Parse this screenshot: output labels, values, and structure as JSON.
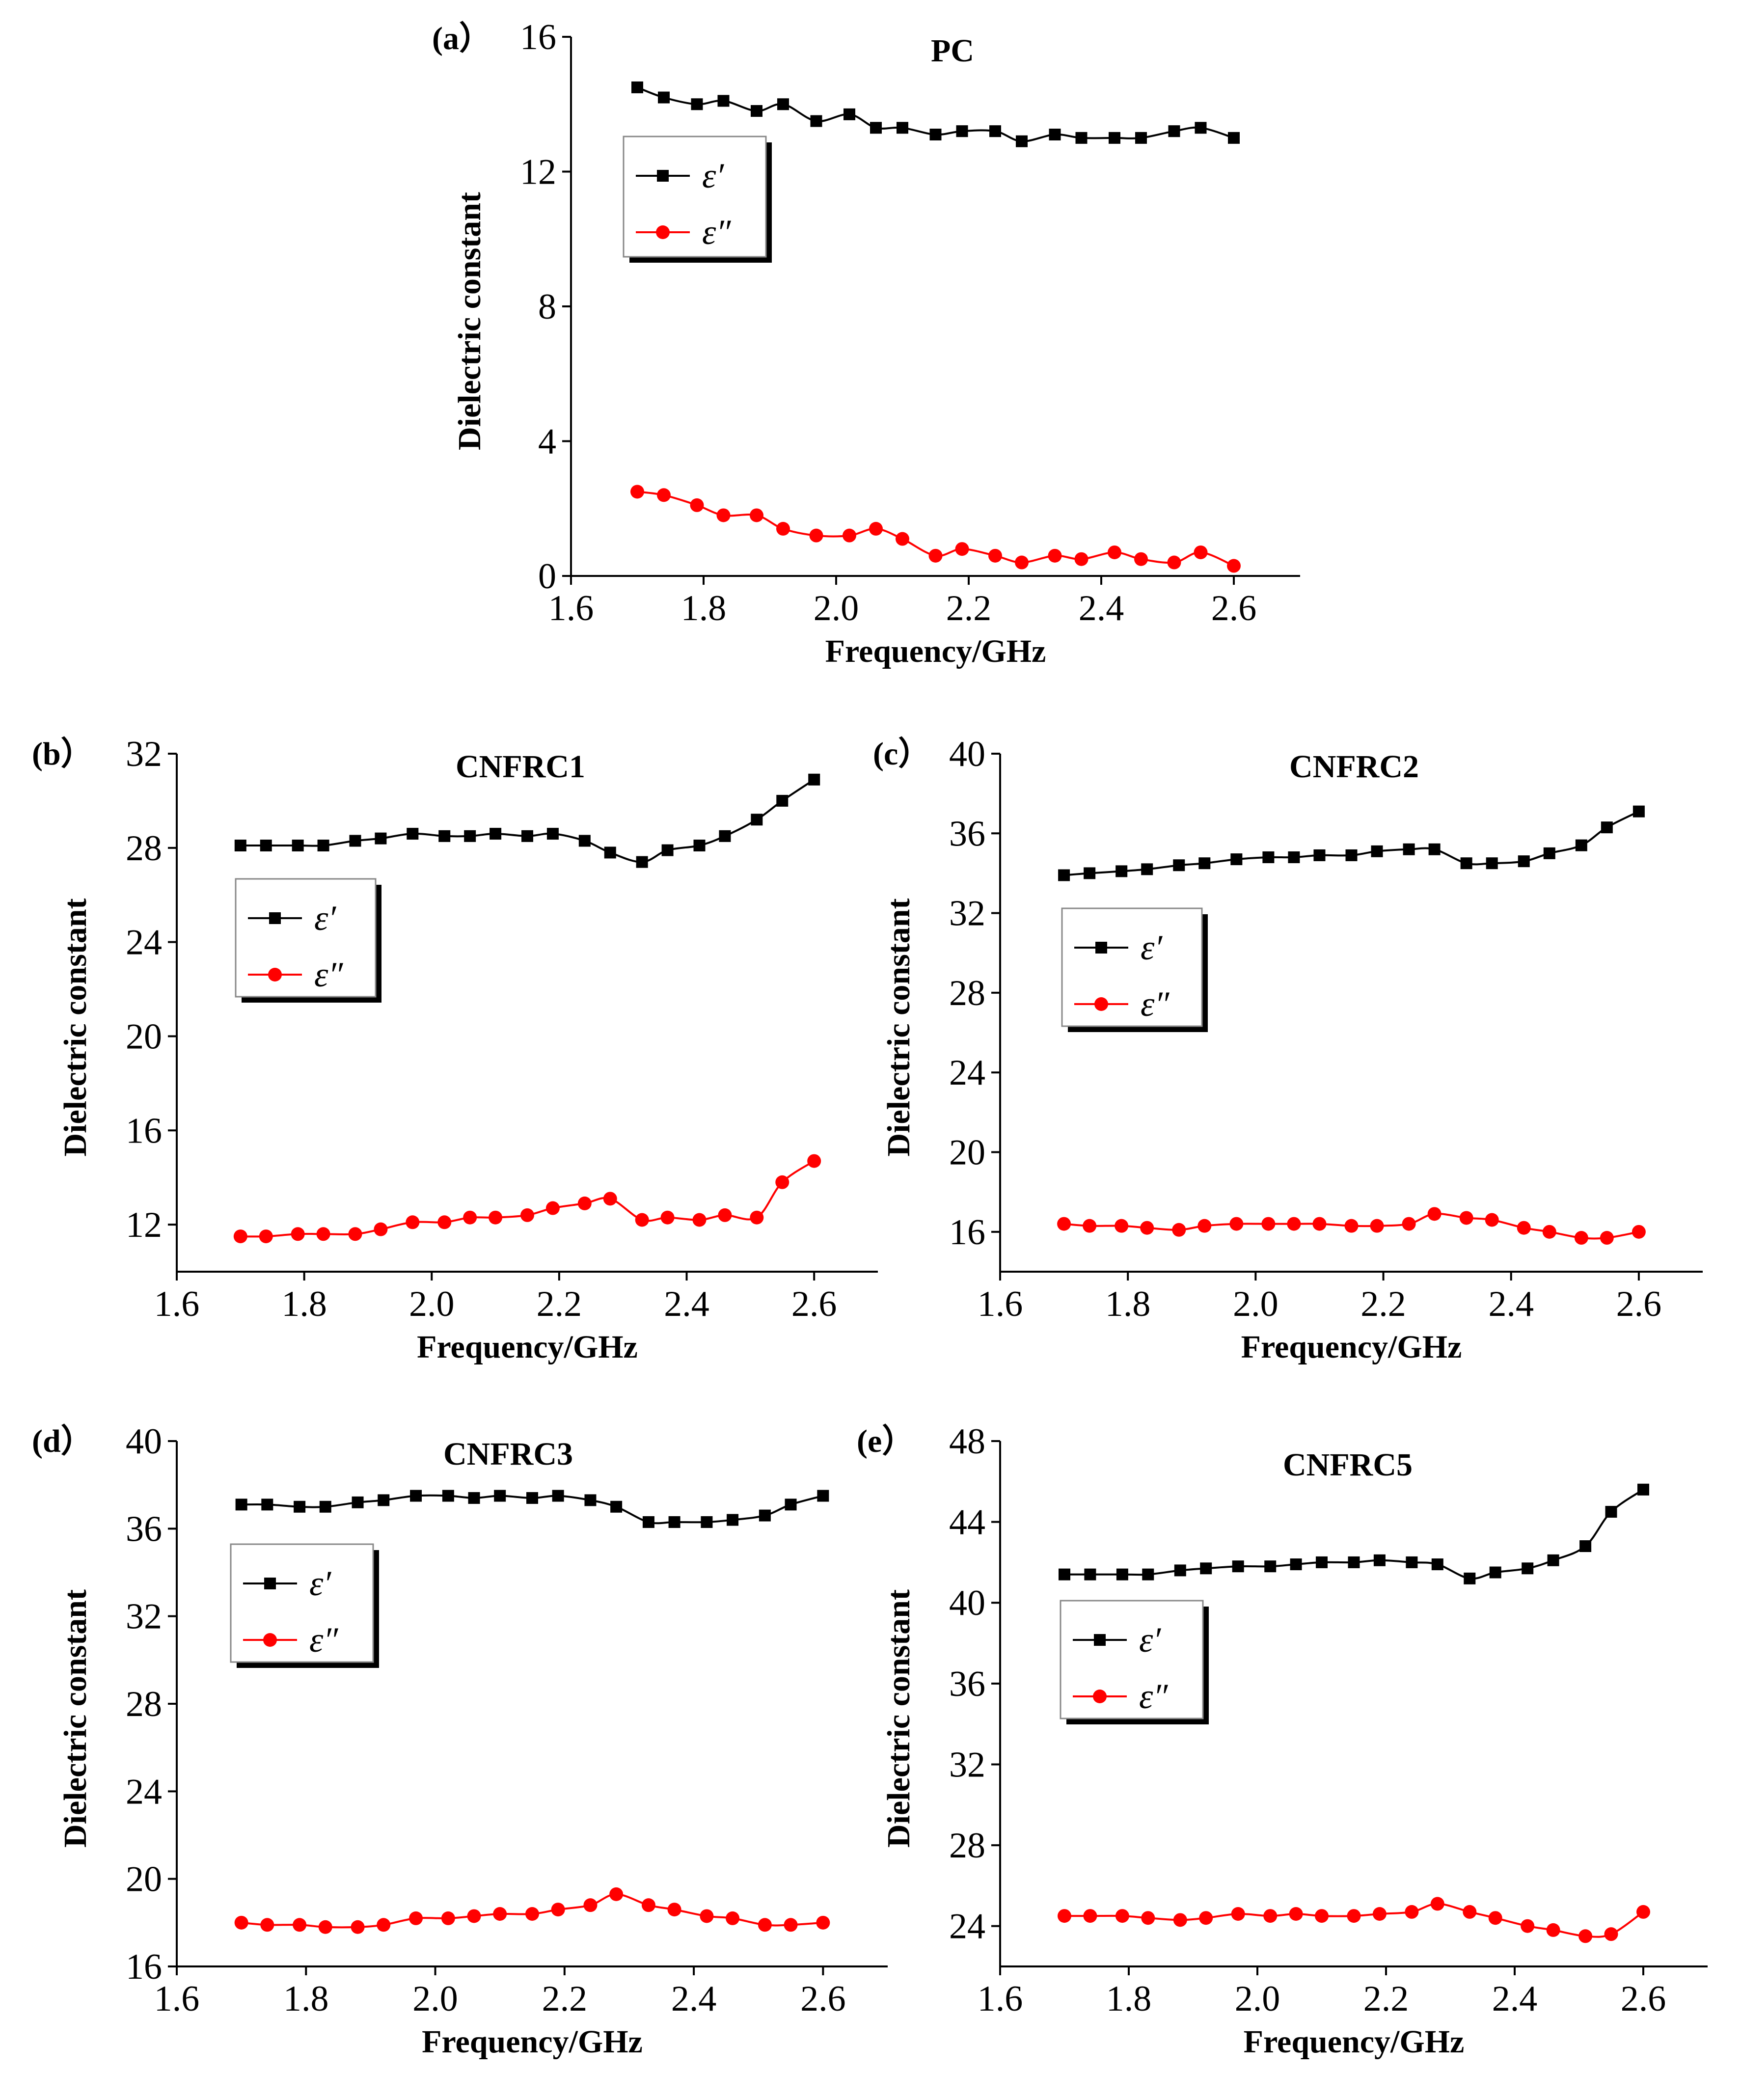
{
  "chart_data": [
    {
      "type": "line",
      "panel_label": "(a）",
      "title": "PC",
      "xlabel": "Frequency/GHz",
      "ylabel": "Dielectric constant",
      "xlim": [
        1.6,
        2.7
      ],
      "ylim": [
        0,
        16
      ],
      "xticks": [
        "1.6",
        "1.8",
        "2.0",
        "2.2",
        "2.4",
        "2.6"
      ],
      "yticks": [
        "0",
        "4",
        "8",
        "12",
        "16"
      ],
      "legend_position": "upper-left",
      "x": [
        1.7,
        1.74,
        1.79,
        1.83,
        1.88,
        1.92,
        1.97,
        2.02,
        2.06,
        2.1,
        2.15,
        2.19,
        2.24,
        2.28,
        2.33,
        2.37,
        2.42,
        2.46,
        2.51,
        2.55,
        2.6
      ],
      "series": [
        {
          "name": "ε′",
          "color": "#000000",
          "marker": "square",
          "values": [
            14.5,
            14.2,
            14.0,
            14.1,
            13.8,
            14.0,
            13.5,
            13.7,
            13.3,
            13.3,
            13.1,
            13.2,
            13.2,
            12.9,
            13.1,
            13.0,
            13.0,
            13.0,
            13.2,
            13.3,
            13.0
          ]
        },
        {
          "name": "ε″",
          "color": "#ff0000",
          "marker": "circle",
          "values": [
            2.5,
            2.4,
            2.1,
            1.8,
            1.8,
            1.4,
            1.2,
            1.2,
            1.4,
            1.1,
            0.6,
            0.8,
            0.6,
            0.4,
            0.6,
            0.5,
            0.7,
            0.5,
            0.4,
            0.7,
            0.3
          ]
        }
      ]
    },
    {
      "type": "line",
      "panel_label": "(b）",
      "title": "CNFRC1",
      "xlabel": "Frequency/GHz",
      "ylabel": "Dielectric constant",
      "xlim": [
        1.6,
        2.7
      ],
      "ylim": [
        10,
        32
      ],
      "xticks": [
        "1.6",
        "1.8",
        "2.0",
        "2.2",
        "2.4",
        "2.6"
      ],
      "yticks": [
        "12",
        "16",
        "20",
        "24",
        "28",
        "32"
      ],
      "legend_position": "upper-left",
      "x": [
        1.7,
        1.74,
        1.79,
        1.83,
        1.88,
        1.92,
        1.97,
        2.02,
        2.06,
        2.1,
        2.15,
        2.19,
        2.24,
        2.28,
        2.33,
        2.37,
        2.42,
        2.46,
        2.51,
        2.55,
        2.6
      ],
      "series": [
        {
          "name": "ε′",
          "color": "#000000",
          "marker": "square",
          "values": [
            28.1,
            28.1,
            28.1,
            28.1,
            28.3,
            28.4,
            28.6,
            28.5,
            28.5,
            28.6,
            28.5,
            28.6,
            28.3,
            27.8,
            27.4,
            27.9,
            28.1,
            28.5,
            29.2,
            30.0,
            30.9
          ]
        },
        {
          "name": "ε″",
          "color": "#ff0000",
          "marker": "circle",
          "values": [
            11.5,
            11.5,
            11.6,
            11.6,
            11.6,
            11.8,
            12.1,
            12.1,
            12.3,
            12.3,
            12.4,
            12.7,
            12.9,
            13.1,
            12.2,
            12.3,
            12.2,
            12.4,
            12.3,
            13.8,
            14.7
          ]
        }
      ]
    },
    {
      "type": "line",
      "panel_label": "(c）",
      "title": "CNFRC2",
      "xlabel": "Frequency/GHz",
      "ylabel": "Dielectric constant",
      "xlim": [
        1.6,
        2.7
      ],
      "ylim": [
        14,
        40
      ],
      "xticks": [
        "1.6",
        "1.8",
        "2.0",
        "2.2",
        "2.4",
        "2.6"
      ],
      "yticks": [
        "16",
        "20",
        "24",
        "28",
        "32",
        "36",
        "40"
      ],
      "legend_position": "upper-left",
      "x": [
        1.7,
        1.74,
        1.79,
        1.83,
        1.88,
        1.92,
        1.97,
        2.02,
        2.06,
        2.1,
        2.15,
        2.19,
        2.24,
        2.28,
        2.33,
        2.37,
        2.42,
        2.46,
        2.51,
        2.55,
        2.6
      ],
      "series": [
        {
          "name": "ε′",
          "color": "#000000",
          "marker": "square",
          "values": [
            33.9,
            34.0,
            34.1,
            34.2,
            34.4,
            34.5,
            34.7,
            34.8,
            34.8,
            34.9,
            34.9,
            35.1,
            35.2,
            35.2,
            34.5,
            34.5,
            34.6,
            35.0,
            35.4,
            36.3,
            37.1
          ]
        },
        {
          "name": "ε″",
          "color": "#ff0000",
          "marker": "circle",
          "values": [
            16.4,
            16.3,
            16.3,
            16.2,
            16.1,
            16.3,
            16.4,
            16.4,
            16.4,
            16.4,
            16.3,
            16.3,
            16.4,
            16.9,
            16.7,
            16.6,
            16.2,
            16.0,
            15.7,
            15.7,
            16.0
          ]
        }
      ]
    },
    {
      "type": "line",
      "panel_label": "(d）",
      "title": "CNFRC3",
      "xlabel": "Frequency/GHz",
      "ylabel": "Dielectric constant",
      "xlim": [
        1.6,
        2.7
      ],
      "ylim": [
        16,
        40
      ],
      "xticks": [
        "1.6",
        "1.8",
        "2.0",
        "2.2",
        "2.4",
        "2.6"
      ],
      "yticks": [
        "16",
        "20",
        "24",
        "28",
        "32",
        "36",
        "40"
      ],
      "legend_position": "upper-left",
      "x": [
        1.7,
        1.74,
        1.79,
        1.83,
        1.88,
        1.92,
        1.97,
        2.02,
        2.06,
        2.1,
        2.15,
        2.19,
        2.24,
        2.28,
        2.33,
        2.37,
        2.42,
        2.46,
        2.51,
        2.55,
        2.6
      ],
      "series": [
        {
          "name": "ε′",
          "color": "#000000",
          "marker": "square",
          "values": [
            37.1,
            37.1,
            37.0,
            37.0,
            37.2,
            37.3,
            37.5,
            37.5,
            37.4,
            37.5,
            37.4,
            37.5,
            37.3,
            37.0,
            36.3,
            36.3,
            36.3,
            36.4,
            36.6,
            37.1,
            37.5
          ]
        },
        {
          "name": "ε″",
          "color": "#ff0000",
          "marker": "circle",
          "values": [
            18.0,
            17.9,
            17.9,
            17.8,
            17.8,
            17.9,
            18.2,
            18.2,
            18.3,
            18.4,
            18.4,
            18.6,
            18.8,
            19.3,
            18.8,
            18.6,
            18.3,
            18.2,
            17.9,
            17.9,
            18.0
          ]
        }
      ]
    },
    {
      "type": "line",
      "panel_label": "(e）",
      "title": "CNFRC5",
      "xlabel": "Frequency/GHz",
      "ylabel": "Dielectric constant",
      "xlim": [
        1.6,
        2.7
      ],
      "ylim": [
        22,
        48
      ],
      "xticks": [
        "1.6",
        "1.8",
        "2.0",
        "2.2",
        "2.4",
        "2.6"
      ],
      "yticks": [
        "24",
        "28",
        "32",
        "36",
        "40",
        "44",
        "48"
      ],
      "legend_position": "upper-left",
      "x": [
        1.7,
        1.74,
        1.79,
        1.83,
        1.88,
        1.92,
        1.97,
        2.02,
        2.06,
        2.1,
        2.15,
        2.19,
        2.24,
        2.28,
        2.33,
        2.37,
        2.42,
        2.46,
        2.51,
        2.55,
        2.6
      ],
      "series": [
        {
          "name": "ε′",
          "color": "#000000",
          "marker": "square",
          "values": [
            41.4,
            41.4,
            41.4,
            41.4,
            41.6,
            41.7,
            41.8,
            41.8,
            41.9,
            42.0,
            42.0,
            42.1,
            42.0,
            41.9,
            41.2,
            41.5,
            41.7,
            42.1,
            42.8,
            44.5,
            45.6
          ]
        },
        {
          "name": "ε″",
          "color": "#ff0000",
          "marker": "circle",
          "values": [
            24.5,
            24.5,
            24.5,
            24.4,
            24.3,
            24.4,
            24.6,
            24.5,
            24.6,
            24.5,
            24.5,
            24.6,
            24.7,
            25.1,
            24.7,
            24.4,
            24.0,
            23.8,
            23.5,
            23.6,
            24.7
          ]
        }
      ]
    }
  ]
}
